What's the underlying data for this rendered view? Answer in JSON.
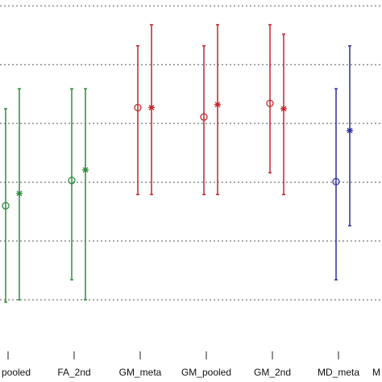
{
  "chart_data": {
    "type": "errorbar",
    "categories": [
      "pooled",
      "FA_2nd",
      "GM_meta",
      "GM_pooled",
      "GM_2nd",
      "MD_meta",
      "M"
    ],
    "colors": [
      "#2e8b3a",
      "#2e8b3a",
      "#c4252b",
      "#c4252b",
      "#c4252b",
      "#2b2ea0",
      "#2b2ea0"
    ],
    "series": [
      {
        "marker": "circle",
        "values": [
          2.6,
          3.03,
          4.27,
          4.11,
          4.34,
          3.01,
          null
        ],
        "lower": [
          0.96,
          1.34,
          2.79,
          2.79,
          3.16,
          1.34,
          null
        ],
        "upper": [
          4.25,
          4.59,
          5.32,
          5.32,
          5.68,
          4.59,
          null
        ]
      },
      {
        "marker": "star",
        "values": [
          2.81,
          3.21,
          4.27,
          4.32,
          4.25,
          3.88,
          null
        ],
        "lower": [
          1.0,
          1.0,
          2.79,
          2.79,
          2.79,
          2.26,
          null
        ],
        "upper": [
          4.59,
          4.59,
          5.68,
          5.68,
          5.52,
          5.32,
          null
        ]
      }
    ],
    "ylim": [
      0.15,
      6.1
    ],
    "yticks": [
      1,
      2,
      3,
      4,
      5,
      6
    ],
    "grid": true
  }
}
